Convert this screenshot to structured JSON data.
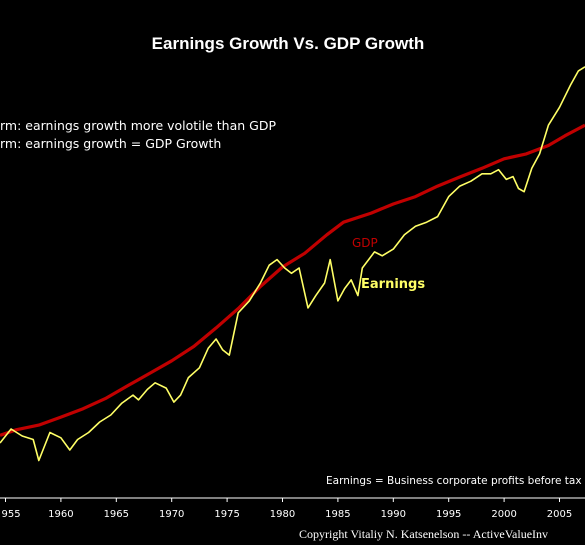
{
  "chart_data": {
    "type": "line",
    "title": "Earnings Growth Vs. GDP Growth",
    "notes": [
      "rm: earnings growth more volotile than GDP",
      "rm: earnings growth = GDP Growth"
    ],
    "footnote": "Earnings = Business corporate profits before tax",
    "copyright": "Copyright  Vitaliy N. Katsenelson  --  ActiveValueInv",
    "x_ticks": [
      "955",
      "1960",
      "1965",
      "1970",
      "1975",
      "1980",
      "1985",
      "1990",
      "1995",
      "2000",
      "2005"
    ],
    "xlim": [
      1954.5,
      2007.3
    ],
    "y_scale": "log",
    "ylim": [
      0,
      100
    ],
    "grid": false,
    "legend": "inline labels",
    "colors": {
      "gdp": "#c00000",
      "earnings": "#ffff66",
      "background": "#000000"
    },
    "series": [
      {
        "name": "GDP",
        "x": [
          1954.5,
          1956,
          1958,
          1960,
          1962,
          1964,
          1966,
          1968,
          1970,
          1972,
          1974,
          1976,
          1978,
          1980,
          1982,
          1984,
          1985.5,
          1988,
          1990,
          1992,
          1994,
          1996,
          1998,
          2000,
          2002,
          2004,
          2005.5,
          2007.3
        ],
        "values": [
          12.2,
          13.8,
          15.1,
          17.4,
          19.8,
          22.7,
          26.3,
          29.9,
          33.5,
          37.6,
          42.9,
          48.4,
          54.7,
          60.3,
          64.2,
          69.5,
          73.1,
          75.7,
          78.3,
          80.4,
          83.4,
          86.0,
          88.5,
          91.2,
          92.6,
          95.0,
          97.8,
          100.8
        ]
      },
      {
        "name": "Earnings",
        "x": [
          1954.5,
          1955.5,
          1956.5,
          1957.5,
          1958,
          1959,
          1960,
          1960.8,
          1961.5,
          1962.5,
          1963.5,
          1964.5,
          1965.5,
          1966.5,
          1967,
          1967.8,
          1968.5,
          1969.5,
          1970.2,
          1970.8,
          1971.5,
          1972.5,
          1973.3,
          1974,
          1974.6,
          1975.2,
          1976,
          1977,
          1978,
          1978.8,
          1979.5,
          1980.2,
          1980.8,
          1981.5,
          1982.3,
          1983,
          1983.8,
          1984.3,
          1985,
          1985.6,
          1986.2,
          1986.8,
          1987.2,
          1988.3,
          1989,
          1990,
          1991,
          1992,
          1993,
          1994,
          1995,
          1996,
          1997,
          1998,
          1998.8,
          1999.5,
          2000.2,
          2000.8,
          2001.3,
          2001.8,
          2002.5,
          2003.2,
          2004,
          2005,
          2006,
          2006.7,
          2007.3
        ],
        "values": [
          10,
          14,
          12,
          11,
          5,
          13,
          11.5,
          8,
          11,
          13,
          16,
          18,
          21.4,
          23.7,
          22.3,
          25.3,
          27.2,
          25.7,
          21.7,
          23.7,
          28.7,
          31.5,
          37.1,
          39.7,
          36.6,
          35.1,
          47.2,
          50.6,
          55.7,
          60.8,
          62.4,
          60,
          58.5,
          60,
          48.6,
          52.1,
          55.7,
          62.4,
          50.6,
          54.1,
          56.6,
          52.1,
          60,
          64.6,
          63.5,
          65.4,
          69.5,
          71.9,
          73.1,
          74.7,
          80.4,
          83.4,
          84.8,
          86.9,
          86.9,
          88.1,
          85.3,
          86.1,
          82.7,
          81.8,
          88.5,
          92.6,
          100.8,
          105.9,
          112.3,
          116.3,
          117.5
        ]
      }
    ],
    "annotations": [
      {
        "text": "GDP",
        "series": "GDP"
      },
      {
        "text": "Earnings",
        "series": "Earnings"
      }
    ]
  }
}
